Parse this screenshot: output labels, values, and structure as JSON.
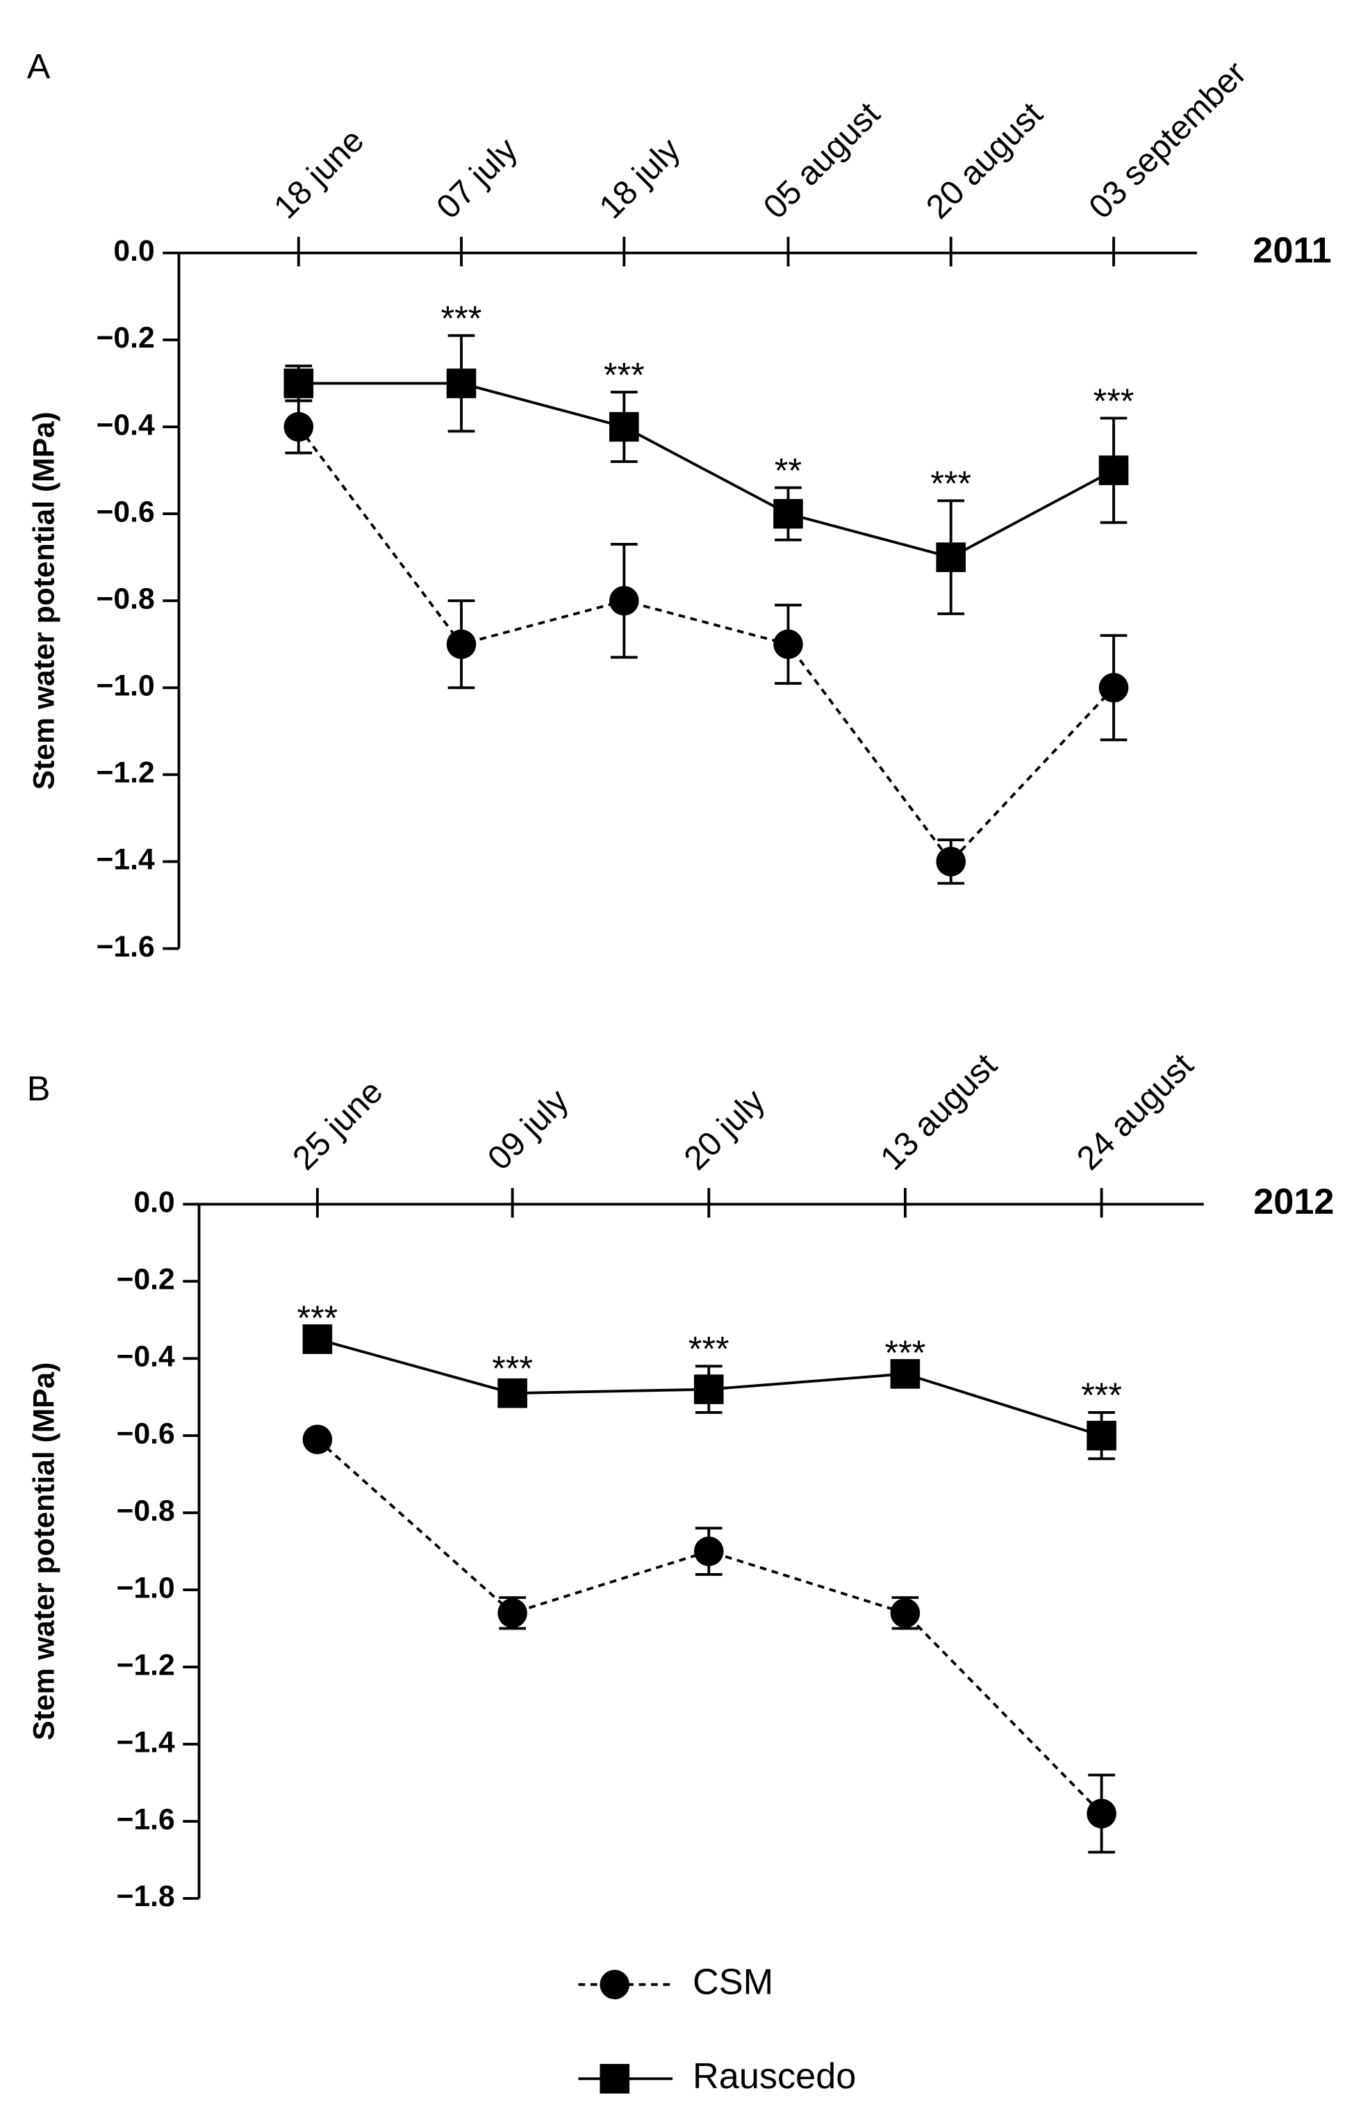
{
  "chart_data": [
    {
      "type": "line",
      "panel_label": "A",
      "year_label": "2011",
      "ylabel": "Stem water potential (MPa)",
      "categories": [
        "18 june",
        "07 july",
        "18 july",
        "05 august",
        "20 august",
        "03 september"
      ],
      "ylim": [
        -1.6,
        0
      ],
      "yticks": [
        {
          "value": 0,
          "label": "0.0"
        },
        {
          "value": -0.2,
          "label": "−0.2"
        },
        {
          "value": -0.4,
          "label": "−0.4"
        },
        {
          "value": -0.6,
          "label": "−0.6"
        },
        {
          "value": -0.8,
          "label": "−0.8"
        },
        {
          "value": -1.0,
          "label": "−1.0"
        },
        {
          "value": -1.2,
          "label": "−1.2"
        },
        {
          "value": -1.4,
          "label": "−1.4"
        },
        {
          "value": -1.6,
          "label": "−1.6"
        }
      ],
      "series": [
        {
          "name": "CSM",
          "color": "#000000",
          "marker": "circle",
          "linestyle": "dashed",
          "values": [
            -0.4,
            -0.9,
            -0.8,
            -0.9,
            -1.4,
            -1.0
          ],
          "errors": [
            0.06,
            0.1,
            0.13,
            0.09,
            0.05,
            0.12
          ]
        },
        {
          "name": "Rauscedo",
          "color": "#000000",
          "marker": "square",
          "linestyle": "solid",
          "values": [
            -0.3,
            -0.3,
            -0.4,
            -0.6,
            -0.7,
            -0.5
          ],
          "errors": [
            0.04,
            0.11,
            0.08,
            0.06,
            0.13,
            0.12
          ]
        }
      ],
      "annotations": [
        null,
        "***",
        "***",
        "**",
        "***",
        "***"
      ]
    },
    {
      "type": "line",
      "panel_label": "B",
      "year_label": "2012",
      "ylabel": "Stem water potential (MPa)",
      "categories": [
        "25 june",
        "09 july",
        "20 july",
        "13 august",
        "24 august"
      ],
      "ylim": [
        -1.8,
        0
      ],
      "yticks": [
        {
          "value": 0,
          "label": "0.0"
        },
        {
          "value": -0.2,
          "label": "−0.2"
        },
        {
          "value": -0.4,
          "label": "−0.4"
        },
        {
          "value": -0.6,
          "label": "−0.6"
        },
        {
          "value": -0.8,
          "label": "−0.8"
        },
        {
          "value": -1.0,
          "label": "−1.0"
        },
        {
          "value": -1.2,
          "label": "−1.2"
        },
        {
          "value": -1.4,
          "label": "−1.4"
        },
        {
          "value": -1.6,
          "label": "−1.6"
        },
        {
          "value": -1.8,
          "label": "−1.8"
        }
      ],
      "series": [
        {
          "name": "CSM",
          "color": "#000000",
          "marker": "circle",
          "linestyle": "dashed",
          "values": [
            -0.61,
            -1.06,
            -0.9,
            -1.06,
            -1.58
          ],
          "errors": [
            0.01,
            0.04,
            0.06,
            0.04,
            0.1
          ]
        },
        {
          "name": "Rauscedo",
          "color": "#000000",
          "marker": "square",
          "linestyle": "solid",
          "values": [
            -0.35,
            -0.49,
            -0.48,
            -0.44,
            -0.6
          ],
          "errors": [
            0.01,
            0.02,
            0.06,
            0.01,
            0.06
          ]
        }
      ],
      "annotations": [
        "***",
        "***",
        "***",
        "***",
        "***"
      ]
    }
  ]
}
